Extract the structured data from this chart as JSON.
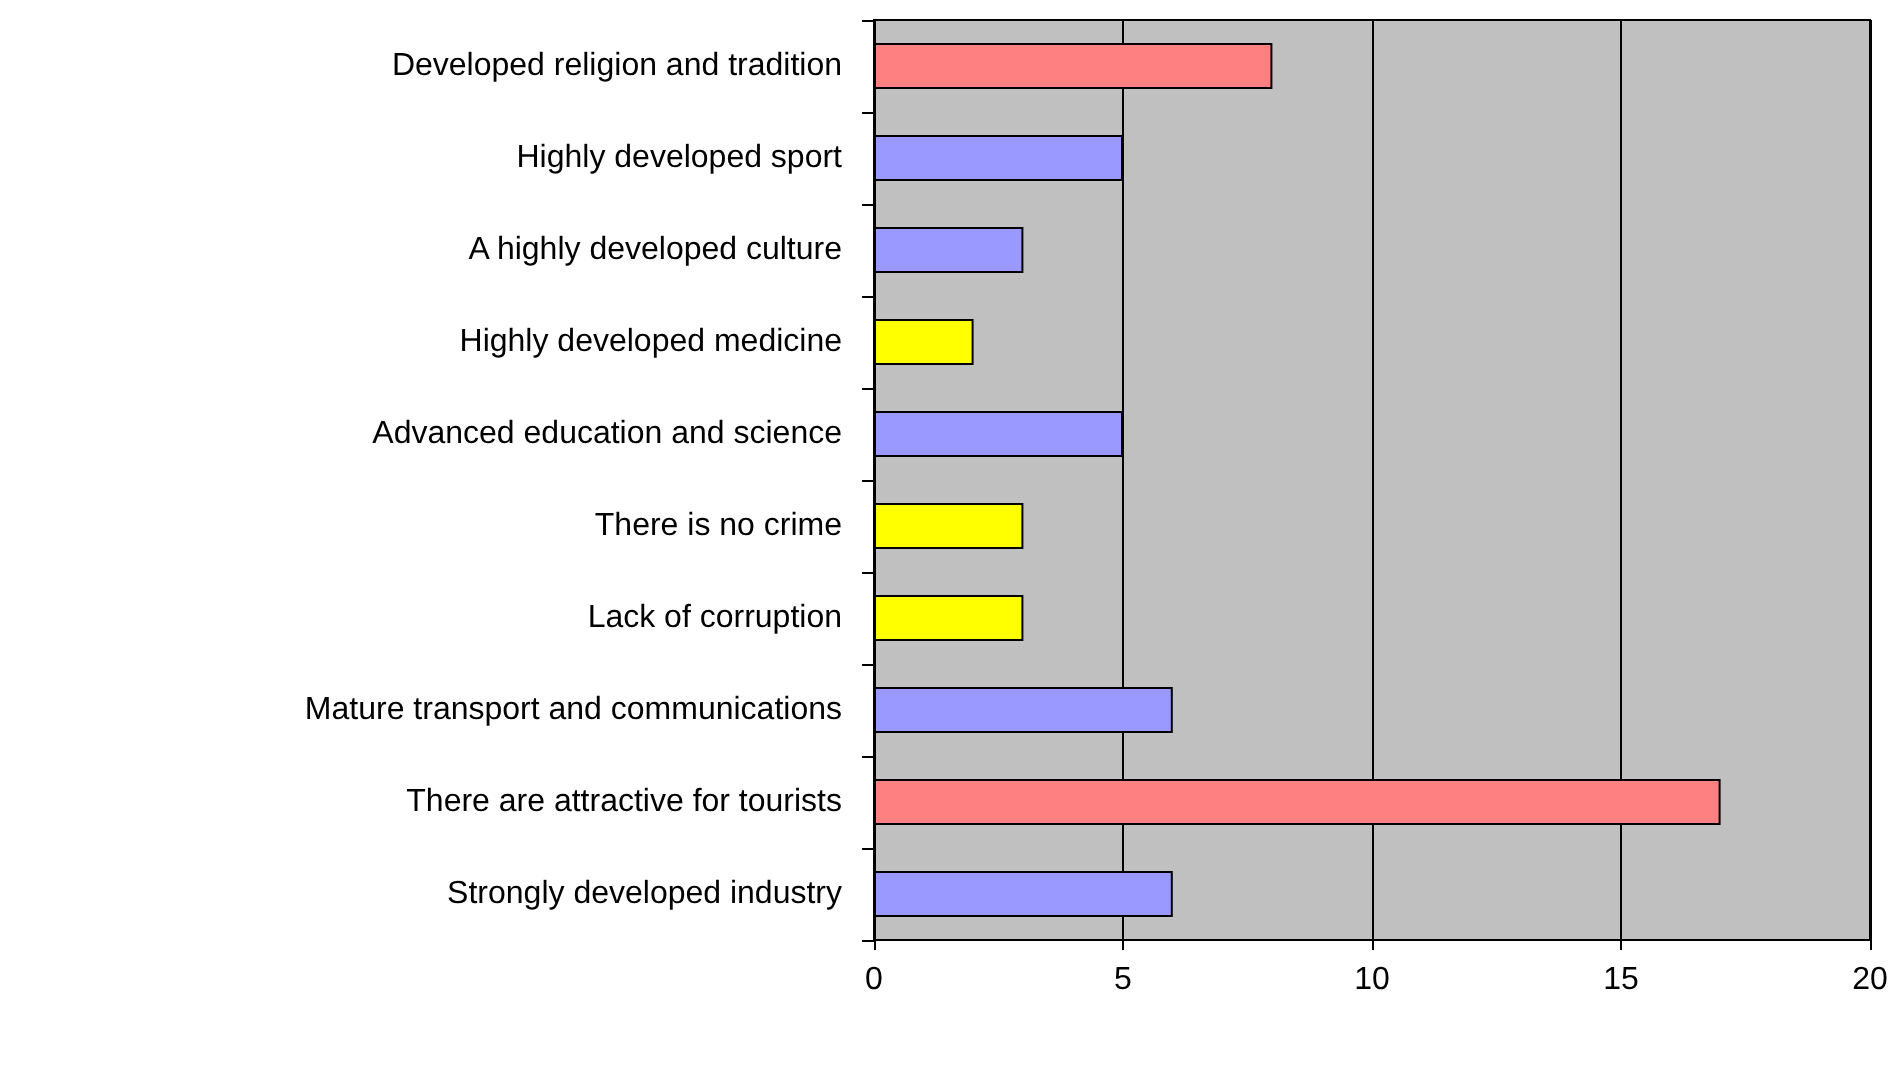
{
  "chart_data": {
    "type": "bar",
    "orientation": "horizontal",
    "categories": [
      "Developed religion and tradition",
      "Highly developed sport",
      "A highly developed culture",
      "Highly developed medicine",
      "Advanced education and science",
      "There is no crime",
      "Lack of corruption",
      "Mature transport and communications",
      "There are attractive for tourists",
      "Strongly developed industry"
    ],
    "values": [
      8,
      5,
      3,
      2,
      5,
      3,
      3,
      6,
      17,
      6
    ],
    "colors": [
      "#ff8080",
      "#9999ff",
      "#9999ff",
      "#ffff00",
      "#9999ff",
      "#ffff00",
      "#ffff00",
      "#9999ff",
      "#ff8080",
      "#9999ff"
    ],
    "xlim": [
      0,
      20
    ],
    "xticks": [
      0,
      5,
      10,
      15,
      20
    ],
    "grid": "x"
  }
}
